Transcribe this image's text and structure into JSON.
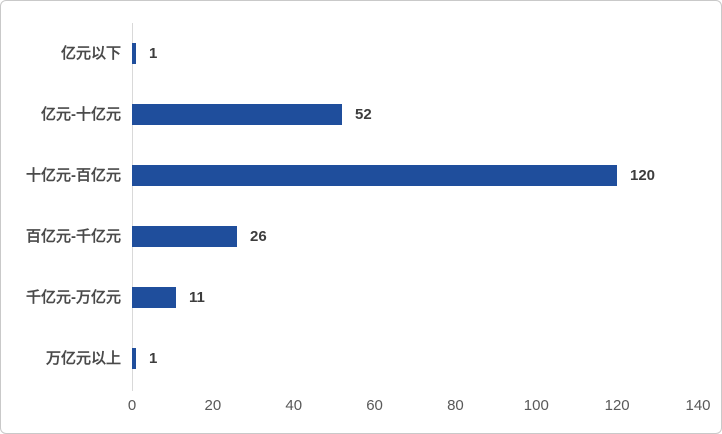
{
  "chart_data": {
    "type": "bar",
    "orientation": "horizontal",
    "title": "",
    "xlabel": "",
    "ylabel": "",
    "categories": [
      "亿元以下",
      "亿元-十亿元",
      "十亿元-百亿元",
      "百亿元-千亿元",
      "千亿元-万亿元",
      "万亿元以上"
    ],
    "values": [
      1,
      52,
      120,
      26,
      11,
      1
    ],
    "value_labels": [
      "1",
      "52",
      "120",
      "26",
      "11",
      "1"
    ],
    "xlim": [
      0,
      140
    ],
    "x_ticks": [
      0,
      20,
      40,
      60,
      80,
      100,
      120,
      140
    ],
    "grid": false,
    "legend_position": "none",
    "bar_color": "#1F4E9C",
    "value_labels_shown": true
  },
  "colors": {
    "bar": "#1F4E9C",
    "axis_line": "#D9D9D9",
    "tick_label": "#595959",
    "category_label": "#4A4A4A",
    "value_label": "#3D3D3D",
    "card_border": "#C9C9C9",
    "background": "#FFFFFF"
  }
}
